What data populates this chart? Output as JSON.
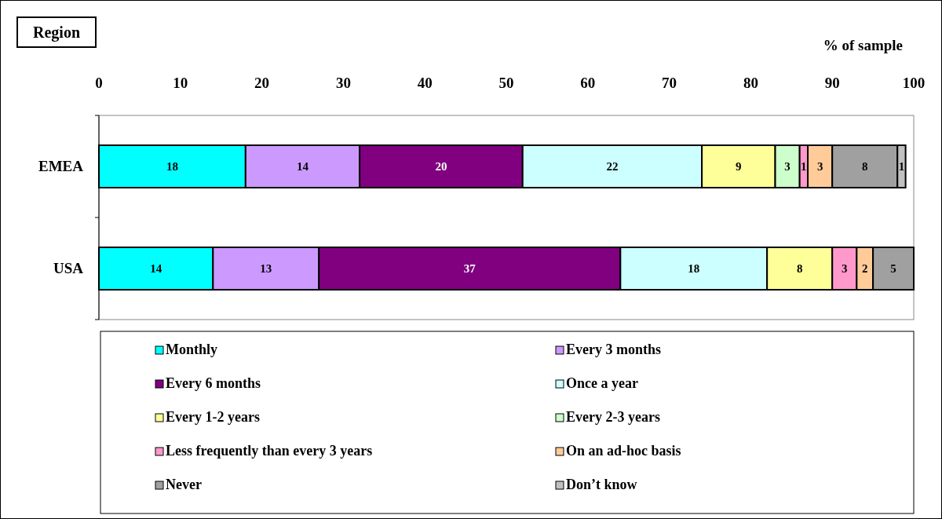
{
  "chart_data": {
    "type": "bar",
    "orientation": "horizontal",
    "stacked": true,
    "data_labels": true,
    "ylabel": "Region",
    "xlabel": "% of sample",
    "categories": [
      "EMEA",
      "USA"
    ],
    "xlim": [
      0,
      100
    ],
    "xticks": [
      0,
      10,
      20,
      30,
      40,
      50,
      60,
      70,
      80,
      90,
      100
    ],
    "grid": false,
    "legend": "bottom",
    "series": [
      {
        "name": "Monthly",
        "color": "#00ffff",
        "values": [
          18,
          14
        ]
      },
      {
        "name": "Every 3 months",
        "color": "#cc99ff",
        "values": [
          14,
          13
        ]
      },
      {
        "name": "Every 6 months",
        "color": "#800080",
        "values": [
          20,
          37
        ]
      },
      {
        "name": "Once a year",
        "color": "#ccffff",
        "values": [
          22,
          18
        ]
      },
      {
        "name": "Every 1-2 years",
        "color": "#ffff99",
        "values": [
          9,
          8
        ]
      },
      {
        "name": "Every 2-3 years",
        "color": "#ccffcc",
        "values": [
          3,
          null
        ]
      },
      {
        "name": "Less frequently than every 3 years",
        "color": "#ff99cc",
        "values": [
          1,
          3
        ]
      },
      {
        "name": "On an ad-hoc basis",
        "color": "#ffcc99",
        "values": [
          3,
          2
        ]
      },
      {
        "name": "Never",
        "color": "#a0a0a0",
        "values": [
          8,
          5
        ]
      },
      {
        "name": "Don’t know",
        "color": "#c0c0c0",
        "values": [
          1,
          null
        ]
      }
    ]
  }
}
